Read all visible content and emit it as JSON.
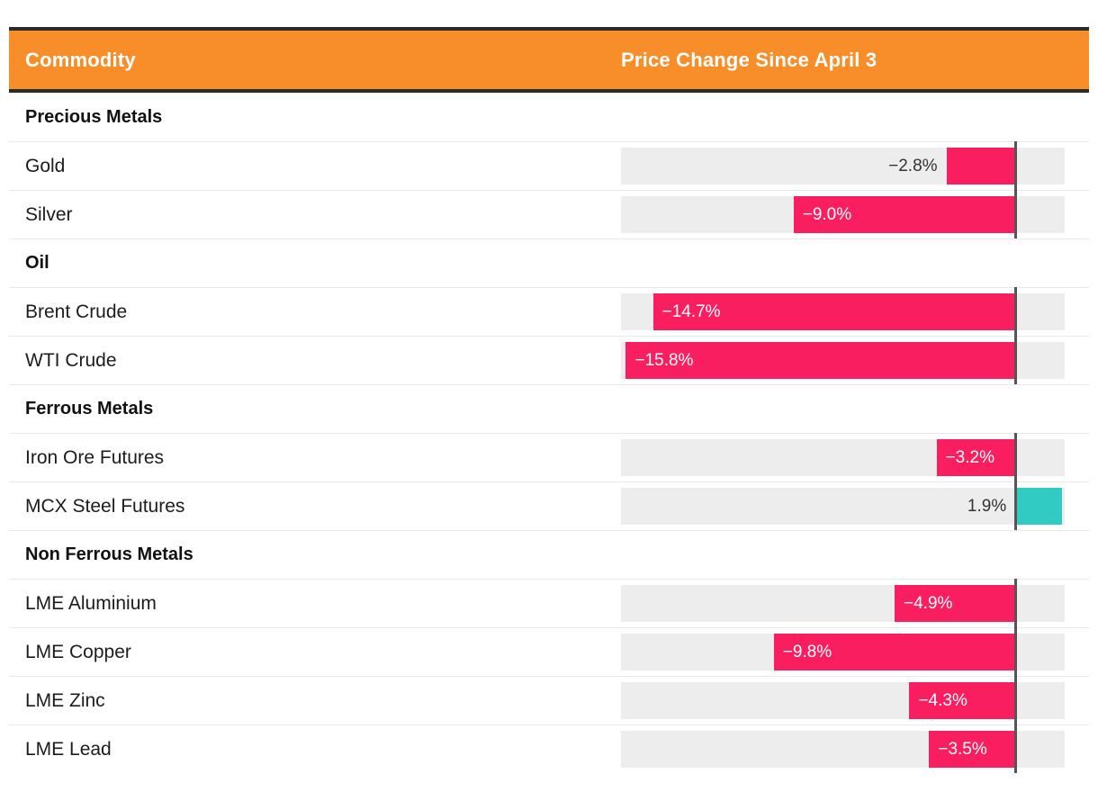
{
  "header": {
    "commodity_label": "Commodity",
    "price_label": "Price Change Since April 3"
  },
  "colors": {
    "accent_orange": "#F88E2A",
    "header_border": "#2B2B2B",
    "negative_pink": "#F91E5F",
    "positive_teal": "#31CBC3",
    "track_gray": "#EDEDED",
    "zero_line": "#555555",
    "divider": "#E9E9E9"
  },
  "chart_data": {
    "type": "bar",
    "orientation": "horizontal",
    "title": "Price Change Since April 3",
    "unit": "%",
    "xlim": [
      -16,
      2
    ],
    "grid": false,
    "legend": false,
    "groups": [
      {
        "label": "Precious Metals",
        "rows": [
          {
            "label": "Gold",
            "value": -2.8,
            "display": "−2.8%",
            "label_inside": false
          },
          {
            "label": "Silver",
            "value": -9.0,
            "display": "−9.0%",
            "label_inside": true
          }
        ]
      },
      {
        "label": "Oil",
        "rows": [
          {
            "label": "Brent Crude",
            "value": -14.7,
            "display": "−14.7%",
            "label_inside": true
          },
          {
            "label": "WTI Crude",
            "value": -15.8,
            "display": "−15.8%",
            "label_inside": true
          }
        ]
      },
      {
        "label": "Ferrous Metals",
        "rows": [
          {
            "label": "Iron Ore Futures",
            "value": -3.2,
            "display": "−3.2%",
            "label_inside": true
          },
          {
            "label": "MCX Steel Futures",
            "value": 1.9,
            "display": "1.9%",
            "label_inside": false
          }
        ]
      },
      {
        "label": "Non Ferrous Metals",
        "rows": [
          {
            "label": "LME Aluminium",
            "value": -4.9,
            "display": "−4.9%",
            "label_inside": true
          },
          {
            "label": "LME Copper",
            "value": -9.8,
            "display": "−9.8%",
            "label_inside": true
          },
          {
            "label": "LME Zinc",
            "value": -4.3,
            "display": "−4.3%",
            "label_inside": true
          },
          {
            "label": "LME Lead",
            "value": -3.5,
            "display": "−3.5%",
            "label_inside": true
          }
        ]
      }
    ]
  }
}
